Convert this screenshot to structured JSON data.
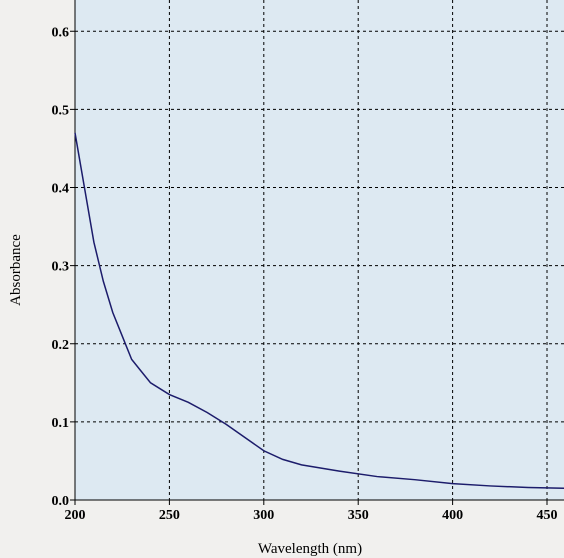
{
  "chart_data": {
    "type": "line",
    "x_label": "Wavelength (nm)",
    "y_label": "Absorbance",
    "x": [
      200,
      205,
      210,
      215,
      220,
      225,
      230,
      235,
      240,
      250,
      260,
      270,
      280,
      290,
      300,
      310,
      320,
      340,
      360,
      380,
      400,
      420,
      440,
      459
    ],
    "series": [
      {
        "color": "#1c1c6b",
        "values": [
          0.47,
          0.4,
          0.33,
          0.28,
          0.24,
          0.21,
          0.18,
          0.165,
          0.15,
          0.135,
          0.125,
          0.112,
          0.097,
          0.08,
          0.063,
          0.052,
          0.045,
          0.037,
          0.03,
          0.026,
          0.021,
          0.018,
          0.016,
          0.015
        ]
      }
    ],
    "xlim": [
      200,
      459
    ],
    "ylim": [
      0,
      0.64
    ],
    "xticks": [
      200,
      250,
      300,
      350,
      400,
      450
    ],
    "yticks": [
      {
        "value": 0,
        "label": "0.0"
      },
      0.1,
      0.2,
      0.3,
      0.4,
      0.5,
      0.6
    ],
    "grid": true
  }
}
